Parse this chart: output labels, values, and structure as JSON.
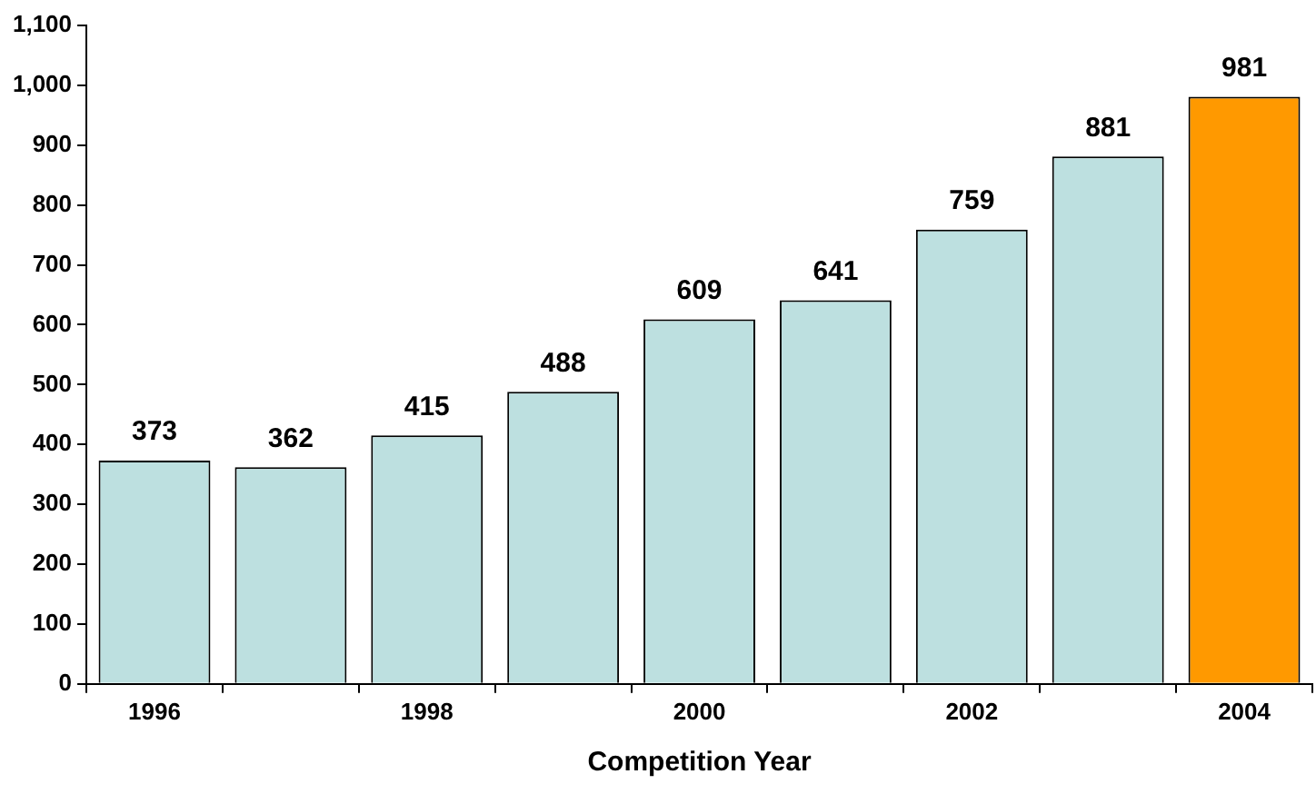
{
  "chart_data": {
    "type": "bar",
    "xlabel": "Competition Year",
    "categories": [
      "1996",
      null,
      "1998",
      null,
      "2000",
      null,
      "2002",
      null,
      "2004"
    ],
    "values": [
      373,
      362,
      415,
      488,
      609,
      641,
      759,
      881,
      981
    ],
    "colors": [
      "#bde0e0",
      "#bde0e0",
      "#bde0e0",
      "#bde0e0",
      "#bde0e0",
      "#bde0e0",
      "#bde0e0",
      "#bde0e0",
      "#ff9900"
    ],
    "ylim": [
      0,
      1100
    ],
    "yticks": [
      0,
      100,
      200,
      300,
      400,
      500,
      600,
      700,
      800,
      900,
      {
        "value": 1000,
        "label": "1,000"
      },
      {
        "value": 1100,
        "label": "1,100"
      }
    ],
    "data_labels": true,
    "grid": false,
    "legend": false
  }
}
